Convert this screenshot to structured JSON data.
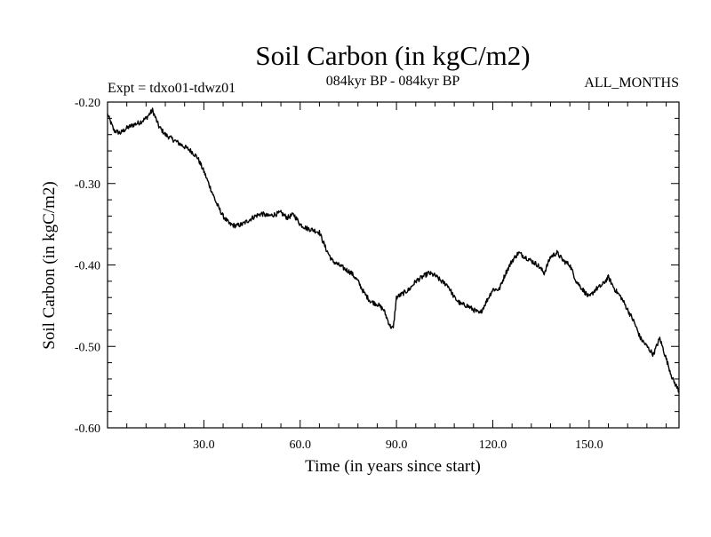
{
  "chart_data": {
    "type": "line",
    "title": "Soil Carbon (in kgC/m2)",
    "subtitle_left": "Expt = tdxo01-tdwz01",
    "subtitle_center": "084kyr BP - 084kyr BP",
    "subtitle_right": "ALL_MONTHS",
    "xlabel": "Time (in years since start)",
    "ylabel": "Soil Carbon (in kgC/m2)",
    "xlim": [
      0,
      178
    ],
    "ylim": [
      -0.6,
      -0.2
    ],
    "xticks": [
      30,
      60,
      90,
      120,
      150
    ],
    "xtick_labels": [
      "30.0",
      "60.0",
      "90.0",
      "120.0",
      "150.0"
    ],
    "yticks": [
      -0.2,
      -0.3,
      -0.4,
      -0.5,
      -0.6
    ],
    "ytick_labels": [
      "-0.20",
      "-0.30",
      "-0.40",
      "-0.50",
      "-0.60"
    ],
    "line_color": "#000000",
    "series": [
      {
        "name": "Soil Carbon",
        "x": [
          0,
          2,
          4,
          6,
          8,
          10,
          12,
          14,
          16,
          18,
          20,
          22,
          24,
          26,
          28,
          30,
          32,
          34,
          36,
          38,
          40,
          42,
          44,
          46,
          48,
          50,
          52,
          54,
          56,
          58,
          60,
          62,
          64,
          66,
          68,
          70,
          72,
          74,
          76,
          78,
          80,
          82,
          84,
          86,
          88,
          89,
          90,
          92,
          94,
          96,
          98,
          100,
          102,
          104,
          106,
          108,
          110,
          112,
          114,
          116,
          118,
          120,
          122,
          124,
          126,
          128,
          130,
          132,
          134,
          136,
          138,
          140,
          142,
          144,
          146,
          148,
          150,
          152,
          154,
          156,
          158,
          160,
          162,
          164,
          166,
          168,
          170,
          172,
          174,
          176,
          178
        ],
        "values": [
          -0.215,
          -0.235,
          -0.238,
          -0.232,
          -0.228,
          -0.225,
          -0.22,
          -0.21,
          -0.23,
          -0.24,
          -0.245,
          -0.25,
          -0.255,
          -0.26,
          -0.268,
          -0.285,
          -0.305,
          -0.325,
          -0.34,
          -0.35,
          -0.352,
          -0.35,
          -0.345,
          -0.34,
          -0.337,
          -0.34,
          -0.338,
          -0.336,
          -0.342,
          -0.338,
          -0.35,
          -0.355,
          -0.357,
          -0.36,
          -0.38,
          -0.395,
          -0.4,
          -0.405,
          -0.41,
          -0.42,
          -0.435,
          -0.445,
          -0.448,
          -0.455,
          -0.475,
          -0.478,
          -0.44,
          -0.435,
          -0.43,
          -0.42,
          -0.415,
          -0.41,
          -0.413,
          -0.42,
          -0.425,
          -0.44,
          -0.448,
          -0.45,
          -0.455,
          -0.46,
          -0.445,
          -0.43,
          -0.43,
          -0.41,
          -0.395,
          -0.385,
          -0.39,
          -0.395,
          -0.4,
          -0.41,
          -0.39,
          -0.385,
          -0.395,
          -0.4,
          -0.42,
          -0.43,
          -0.44,
          -0.43,
          -0.425,
          -0.415,
          -0.43,
          -0.44,
          -0.455,
          -0.47,
          -0.49,
          -0.5,
          -0.51,
          -0.49,
          -0.515,
          -0.54,
          -0.555
        ]
      }
    ]
  }
}
